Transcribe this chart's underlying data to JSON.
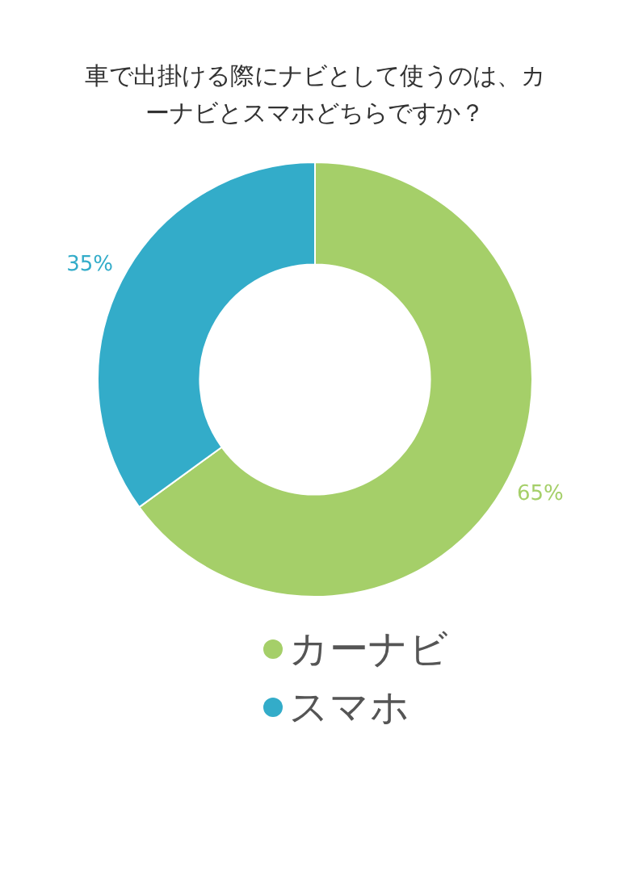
{
  "chart_data": {
    "type": "donut",
    "title": "車で出掛ける際にナビとして使うのは、カーナビとスマホどちらですか？",
    "categories": [
      "カーナビ",
      "スマホ"
    ],
    "values": [
      65,
      35
    ],
    "colors": [
      "#a5cf69",
      "#33acc9"
    ],
    "value_labels": [
      "65%",
      "35%"
    ],
    "legend": "bottom"
  }
}
